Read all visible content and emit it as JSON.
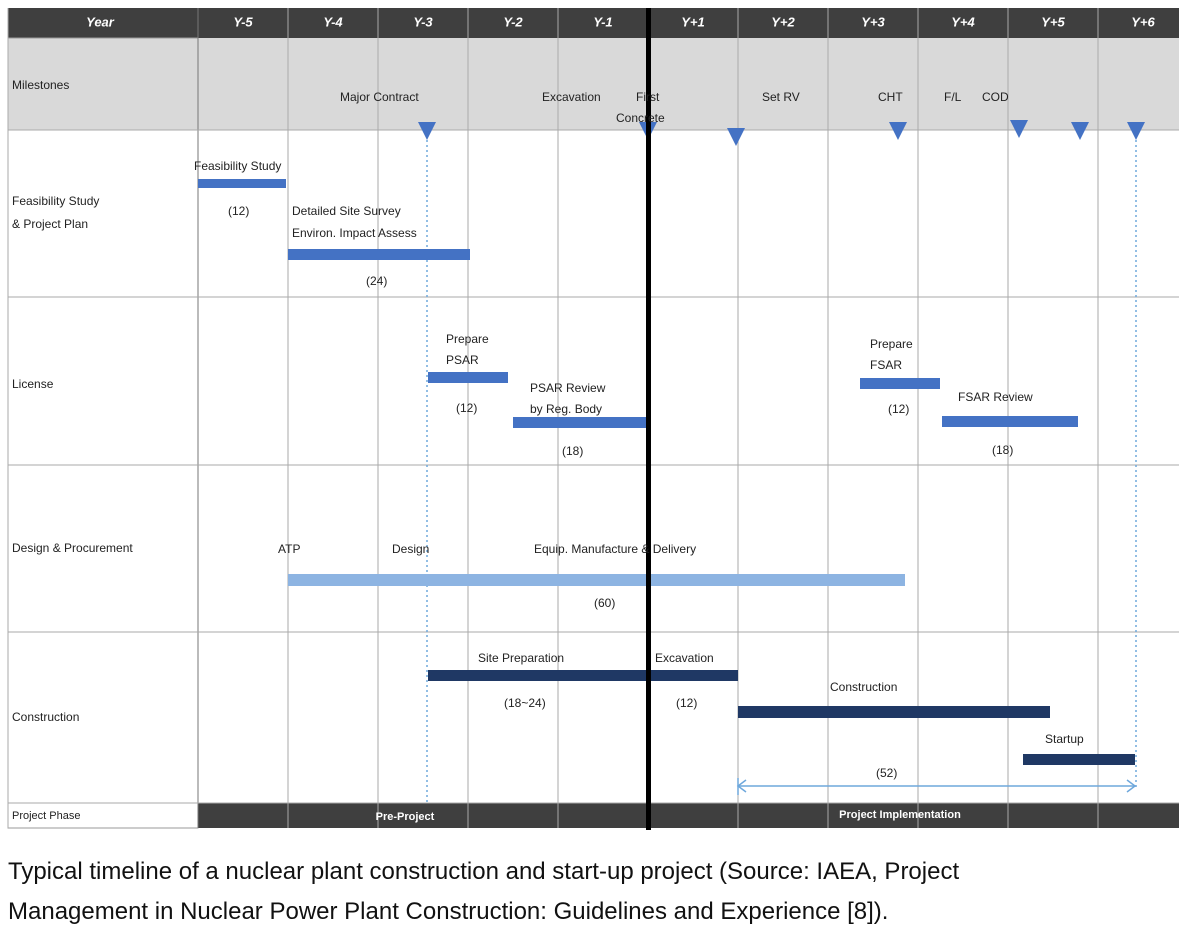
{
  "header": {
    "first_column": "Year",
    "years": [
      "Y-5",
      "Y-4",
      "Y-3",
      "Y-2",
      "Y-1",
      "Y+1",
      "Y+2",
      "Y+3",
      "Y+4",
      "Y+5",
      "Y+6"
    ]
  },
  "milestones": {
    "label": "Milestones",
    "items": [
      "Major Contract",
      "Excavation",
      "First",
      "Concrete",
      "Set RV",
      "CHT",
      "F/L",
      "COD"
    ]
  },
  "rows": [
    {
      "label_lines": [
        "Feasibility Study",
        "& Project Plan"
      ],
      "texts": [
        "Feasibility Study",
        "(12)",
        "Detailed Site Survey",
        "Environ. Impact Assess",
        "(24)"
      ]
    },
    {
      "label_lines": [
        "License"
      ],
      "texts": [
        "Prepare",
        "PSAR",
        "(12)",
        "PSAR Review",
        "by Reg. Body",
        "(18)",
        "Prepare",
        "FSAR",
        "(12)",
        "FSAR Review",
        "(18)"
      ]
    },
    {
      "label_lines": [
        "Design & Procurement"
      ],
      "texts": [
        "ATP",
        "Design",
        "Equip. Manufacture & Delivery",
        "(60)"
      ]
    },
    {
      "label_lines": [
        "Construction"
      ],
      "texts": [
        "Site Preparation",
        "(18~24)",
        "Excavation",
        "(12)",
        "Construction",
        "Startup",
        "(52)"
      ]
    }
  ],
  "phase": {
    "label": "Project Phase",
    "items": [
      "Pre-Project",
      "Project Implementation"
    ]
  },
  "caption": {
    "lines": [
      "Typical timeline of a nuclear plant construction and start-up project (Source: IAEA, Project",
      "Management in Nuclear Power Plant Construction: Guidelines and Experience [8])."
    ]
  }
}
